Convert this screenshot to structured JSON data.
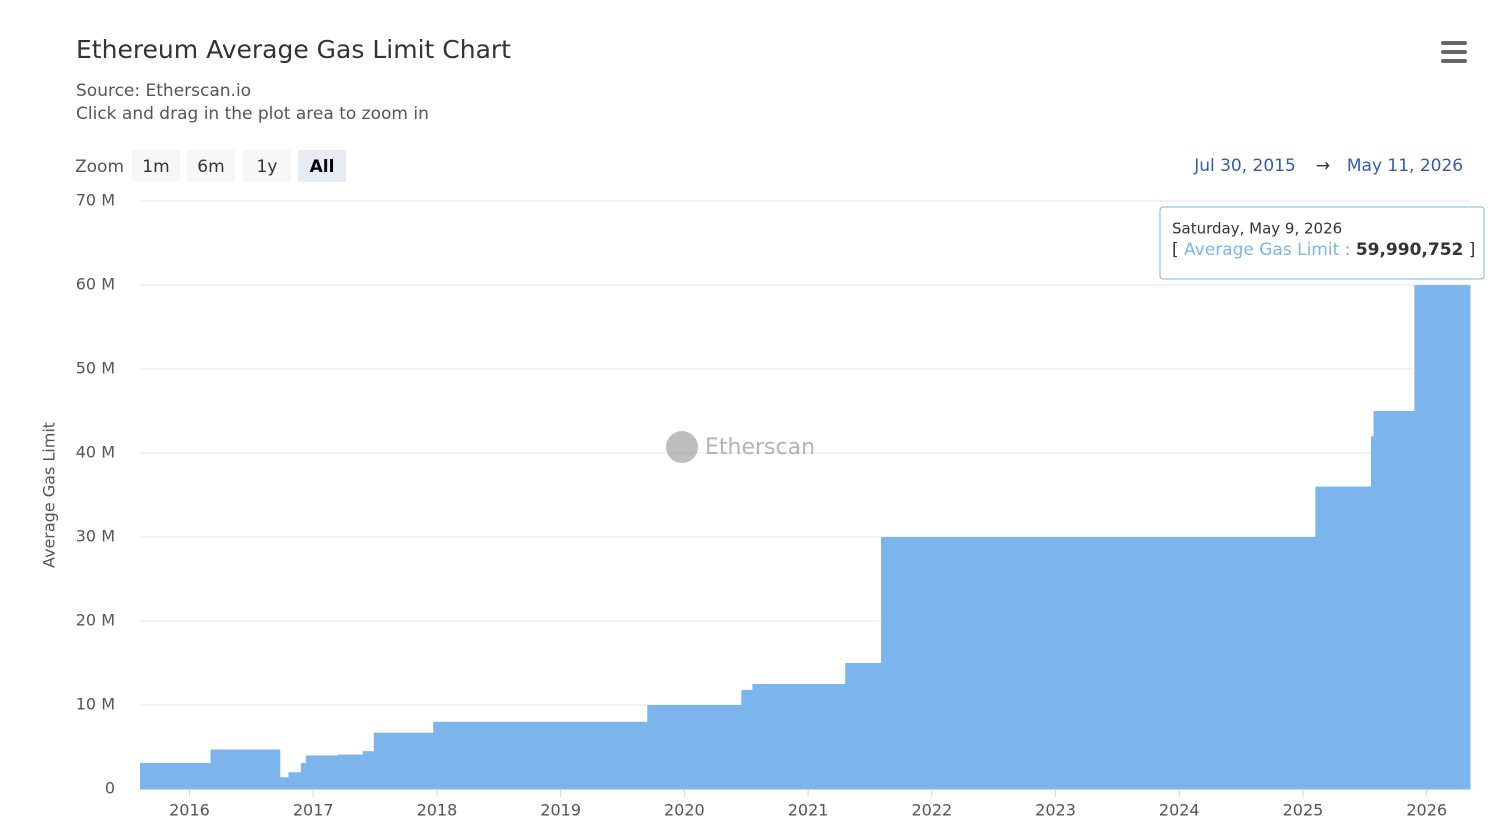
{
  "chart_data": {
    "type": "area",
    "title": "Ethereum Average Gas Limit Chart",
    "subtitle": [
      "Source: Etherscan.io",
      "Click and drag in the plot area to zoom in"
    ],
    "y_label": "Average Gas Limit",
    "watermark": "Etherscan",
    "zoom": {
      "label": "Zoom",
      "buttons": [
        "1m",
        "6m",
        "1y",
        "All"
      ],
      "selected": 3
    },
    "range": {
      "from": "Jul 30, 2015",
      "separator": "→",
      "to": "May 11, 2026"
    },
    "tooltip": {
      "date": "Saturday, May 9, 2026",
      "value": 59990752,
      "value_label": "59,990,752"
    },
    "x": [
      2015.6,
      2016.17,
      2016.73,
      2016.8,
      2016.9,
      2016.94,
      2017.2,
      2017.4,
      2017.49,
      2017.97,
      2019.7,
      2020.46,
      2020.55,
      2021.3,
      2021.59,
      2025.1,
      2025.55,
      2025.57,
      2025.9
    ],
    "series": [
      {
        "name": "Average Gas Limit",
        "color": "#7cb5ec",
        "values": [
          3100000,
          4700000,
          1400000,
          2000000,
          3100000,
          4000000,
          4100000,
          4500000,
          6700000,
          8000000,
          10000000,
          11800000,
          12500000,
          15000000,
          30000000,
          36000000,
          42000000,
          45000000,
          59990752
        ]
      }
    ],
    "xlim": [
      2015.6,
      2026.35
    ],
    "xticks": [
      2016,
      2017,
      2018,
      2019,
      2020,
      2021,
      2022,
      2023,
      2024,
      2025,
      2026
    ],
    "ylim": [
      0,
      70000000
    ],
    "yticks": [
      {
        "value": 0,
        "label": "0"
      },
      {
        "value": 10000000,
        "label": "10 M"
      },
      {
        "value": 20000000,
        "label": "20 M"
      },
      {
        "value": 30000000,
        "label": "30 M"
      },
      {
        "value": 40000000,
        "label": "40 M"
      },
      {
        "value": 50000000,
        "label": "50 M"
      },
      {
        "value": 60000000,
        "label": "60 M"
      },
      {
        "value": 70000000,
        "label": "70 M"
      }
    ],
    "grid": true
  }
}
